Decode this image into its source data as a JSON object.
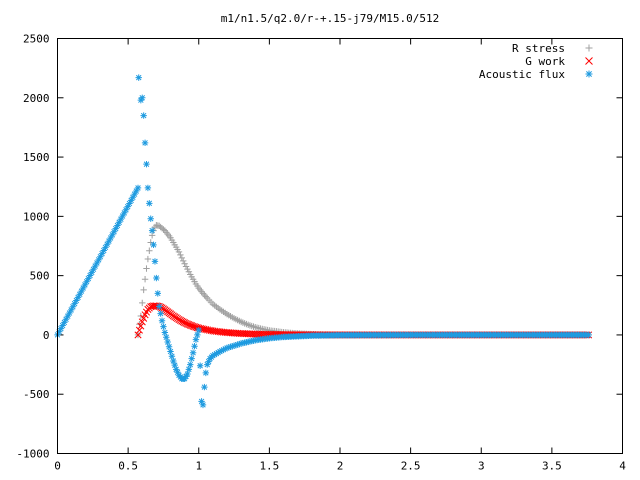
{
  "chart_data": {
    "type": "scatter",
    "title": "m1/n1.5/q2.0/r-+.15-j79/M15.0/512",
    "xlabel": "",
    "ylabel": "",
    "xlim": [
      0,
      4
    ],
    "ylim": [
      -1000,
      2500
    ],
    "xticks": [
      "0",
      "0.5",
      "1",
      "1.5",
      "2",
      "2.5",
      "3",
      "3.5",
      "4"
    ],
    "yticks": [
      "2500",
      "2000",
      "1500",
      "1000",
      "500",
      "0",
      "-500",
      "-1000"
    ],
    "grid": false,
    "legend_position": "top-right",
    "x_range_of_data": [
      0,
      3.76
    ],
    "series": [
      {
        "name": "R stress",
        "marker": "plus",
        "color": "#a0a0a0",
        "points": [
          [
            0.57,
            0
          ],
          [
            0.58,
            90
          ],
          [
            0.59,
            160
          ],
          [
            0.6,
            270
          ],
          [
            0.61,
            380
          ],
          [
            0.62,
            470
          ],
          [
            0.63,
            560
          ],
          [
            0.64,
            640
          ],
          [
            0.65,
            710
          ],
          [
            0.66,
            780
          ],
          [
            0.67,
            840
          ],
          [
            0.68,
            880
          ],
          [
            0.69,
            910
          ],
          [
            0.7,
            925
          ],
          [
            0.72,
            920
          ],
          [
            0.74,
            900
          ],
          [
            0.76,
            880
          ],
          [
            0.78,
            850
          ],
          [
            0.8,
            820
          ],
          [
            0.82,
            780
          ],
          [
            0.84,
            740
          ],
          [
            0.86,
            700
          ],
          [
            0.88,
            650
          ],
          [
            0.9,
            600
          ],
          [
            0.92,
            555
          ],
          [
            0.94,
            510
          ],
          [
            0.96,
            470
          ],
          [
            0.98,
            430
          ],
          [
            1.0,
            395
          ],
          [
            1.03,
            350
          ],
          [
            1.06,
            310
          ],
          [
            1.1,
            260
          ],
          [
            1.15,
            215
          ],
          [
            1.2,
            175
          ],
          [
            1.25,
            140
          ],
          [
            1.3,
            110
          ],
          [
            1.35,
            85
          ],
          [
            1.4,
            65
          ],
          [
            1.45,
            50
          ],
          [
            1.5,
            38
          ],
          [
            1.6,
            22
          ],
          [
            1.7,
            12
          ],
          [
            1.8,
            6
          ],
          [
            1.9,
            3
          ],
          [
            2.0,
            1
          ],
          [
            2.2,
            0
          ],
          [
            3.76,
            0
          ]
        ]
      },
      {
        "name": "G work",
        "marker": "x",
        "color": "#ff0000",
        "points": [
          [
            0.57,
            0
          ],
          [
            0.58,
            40
          ],
          [
            0.6,
            110
          ],
          [
            0.62,
            170
          ],
          [
            0.64,
            215
          ],
          [
            0.66,
            238
          ],
          [
            0.68,
            245
          ],
          [
            0.7,
            245
          ],
          [
            0.72,
            240
          ],
          [
            0.74,
            228
          ],
          [
            0.76,
            212
          ],
          [
            0.78,
            195
          ],
          [
            0.8,
            178
          ],
          [
            0.82,
            160
          ],
          [
            0.84,
            145
          ],
          [
            0.86,
            130
          ],
          [
            0.88,
            116
          ],
          [
            0.9,
            103
          ],
          [
            0.92,
            92
          ],
          [
            0.94,
            82
          ],
          [
            0.96,
            73
          ],
          [
            0.98,
            65
          ],
          [
            1.0,
            58
          ],
          [
            1.05,
            45
          ],
          [
            1.1,
            34
          ],
          [
            1.15,
            26
          ],
          [
            1.2,
            20
          ],
          [
            1.3,
            12
          ],
          [
            1.4,
            7
          ],
          [
            1.5,
            4
          ],
          [
            1.7,
            1
          ],
          [
            2.0,
            0
          ],
          [
            2.3,
            0
          ],
          [
            3.76,
            0
          ]
        ]
      },
      {
        "name": "Acoustic flux",
        "marker": "star",
        "color": "#1f9be0",
        "points": [
          [
            0.0,
            0
          ],
          [
            0.57,
            1240
          ],
          [
            0.575,
            2170
          ],
          [
            0.59,
            1980
          ],
          [
            0.6,
            2000
          ],
          [
            0.61,
            1850
          ],
          [
            0.62,
            1620
          ],
          [
            0.63,
            1440
          ],
          [
            0.64,
            1240
          ],
          [
            0.65,
            1110
          ],
          [
            0.66,
            980
          ],
          [
            0.67,
            880
          ],
          [
            0.68,
            760
          ],
          [
            0.69,
            620
          ],
          [
            0.7,
            480
          ],
          [
            0.71,
            350
          ],
          [
            0.72,
            240
          ],
          [
            0.74,
            120
          ],
          [
            0.76,
            20
          ],
          [
            0.78,
            -60
          ],
          [
            0.8,
            -140
          ],
          [
            0.82,
            -220
          ],
          [
            0.84,
            -290
          ],
          [
            0.86,
            -340
          ],
          [
            0.88,
            -370
          ],
          [
            0.9,
            -370
          ],
          [
            0.92,
            -330
          ],
          [
            0.94,
            -250
          ],
          [
            0.96,
            -150
          ],
          [
            0.98,
            -40
          ],
          [
            1.0,
            40
          ],
          [
            1.02,
            -560
          ],
          [
            1.03,
            -590
          ],
          [
            1.04,
            -440
          ],
          [
            1.05,
            -320
          ],
          [
            1.06,
            -250
          ],
          [
            1.08,
            -200
          ],
          [
            1.1,
            -175
          ],
          [
            1.15,
            -140
          ],
          [
            1.2,
            -110
          ],
          [
            1.3,
            -72
          ],
          [
            1.4,
            -45
          ],
          [
            1.5,
            -28
          ],
          [
            1.6,
            -17
          ],
          [
            1.8,
            -6
          ],
          [
            2.0,
            -2
          ],
          [
            2.5,
            0
          ],
          [
            3.76,
            0
          ]
        ]
      }
    ]
  }
}
